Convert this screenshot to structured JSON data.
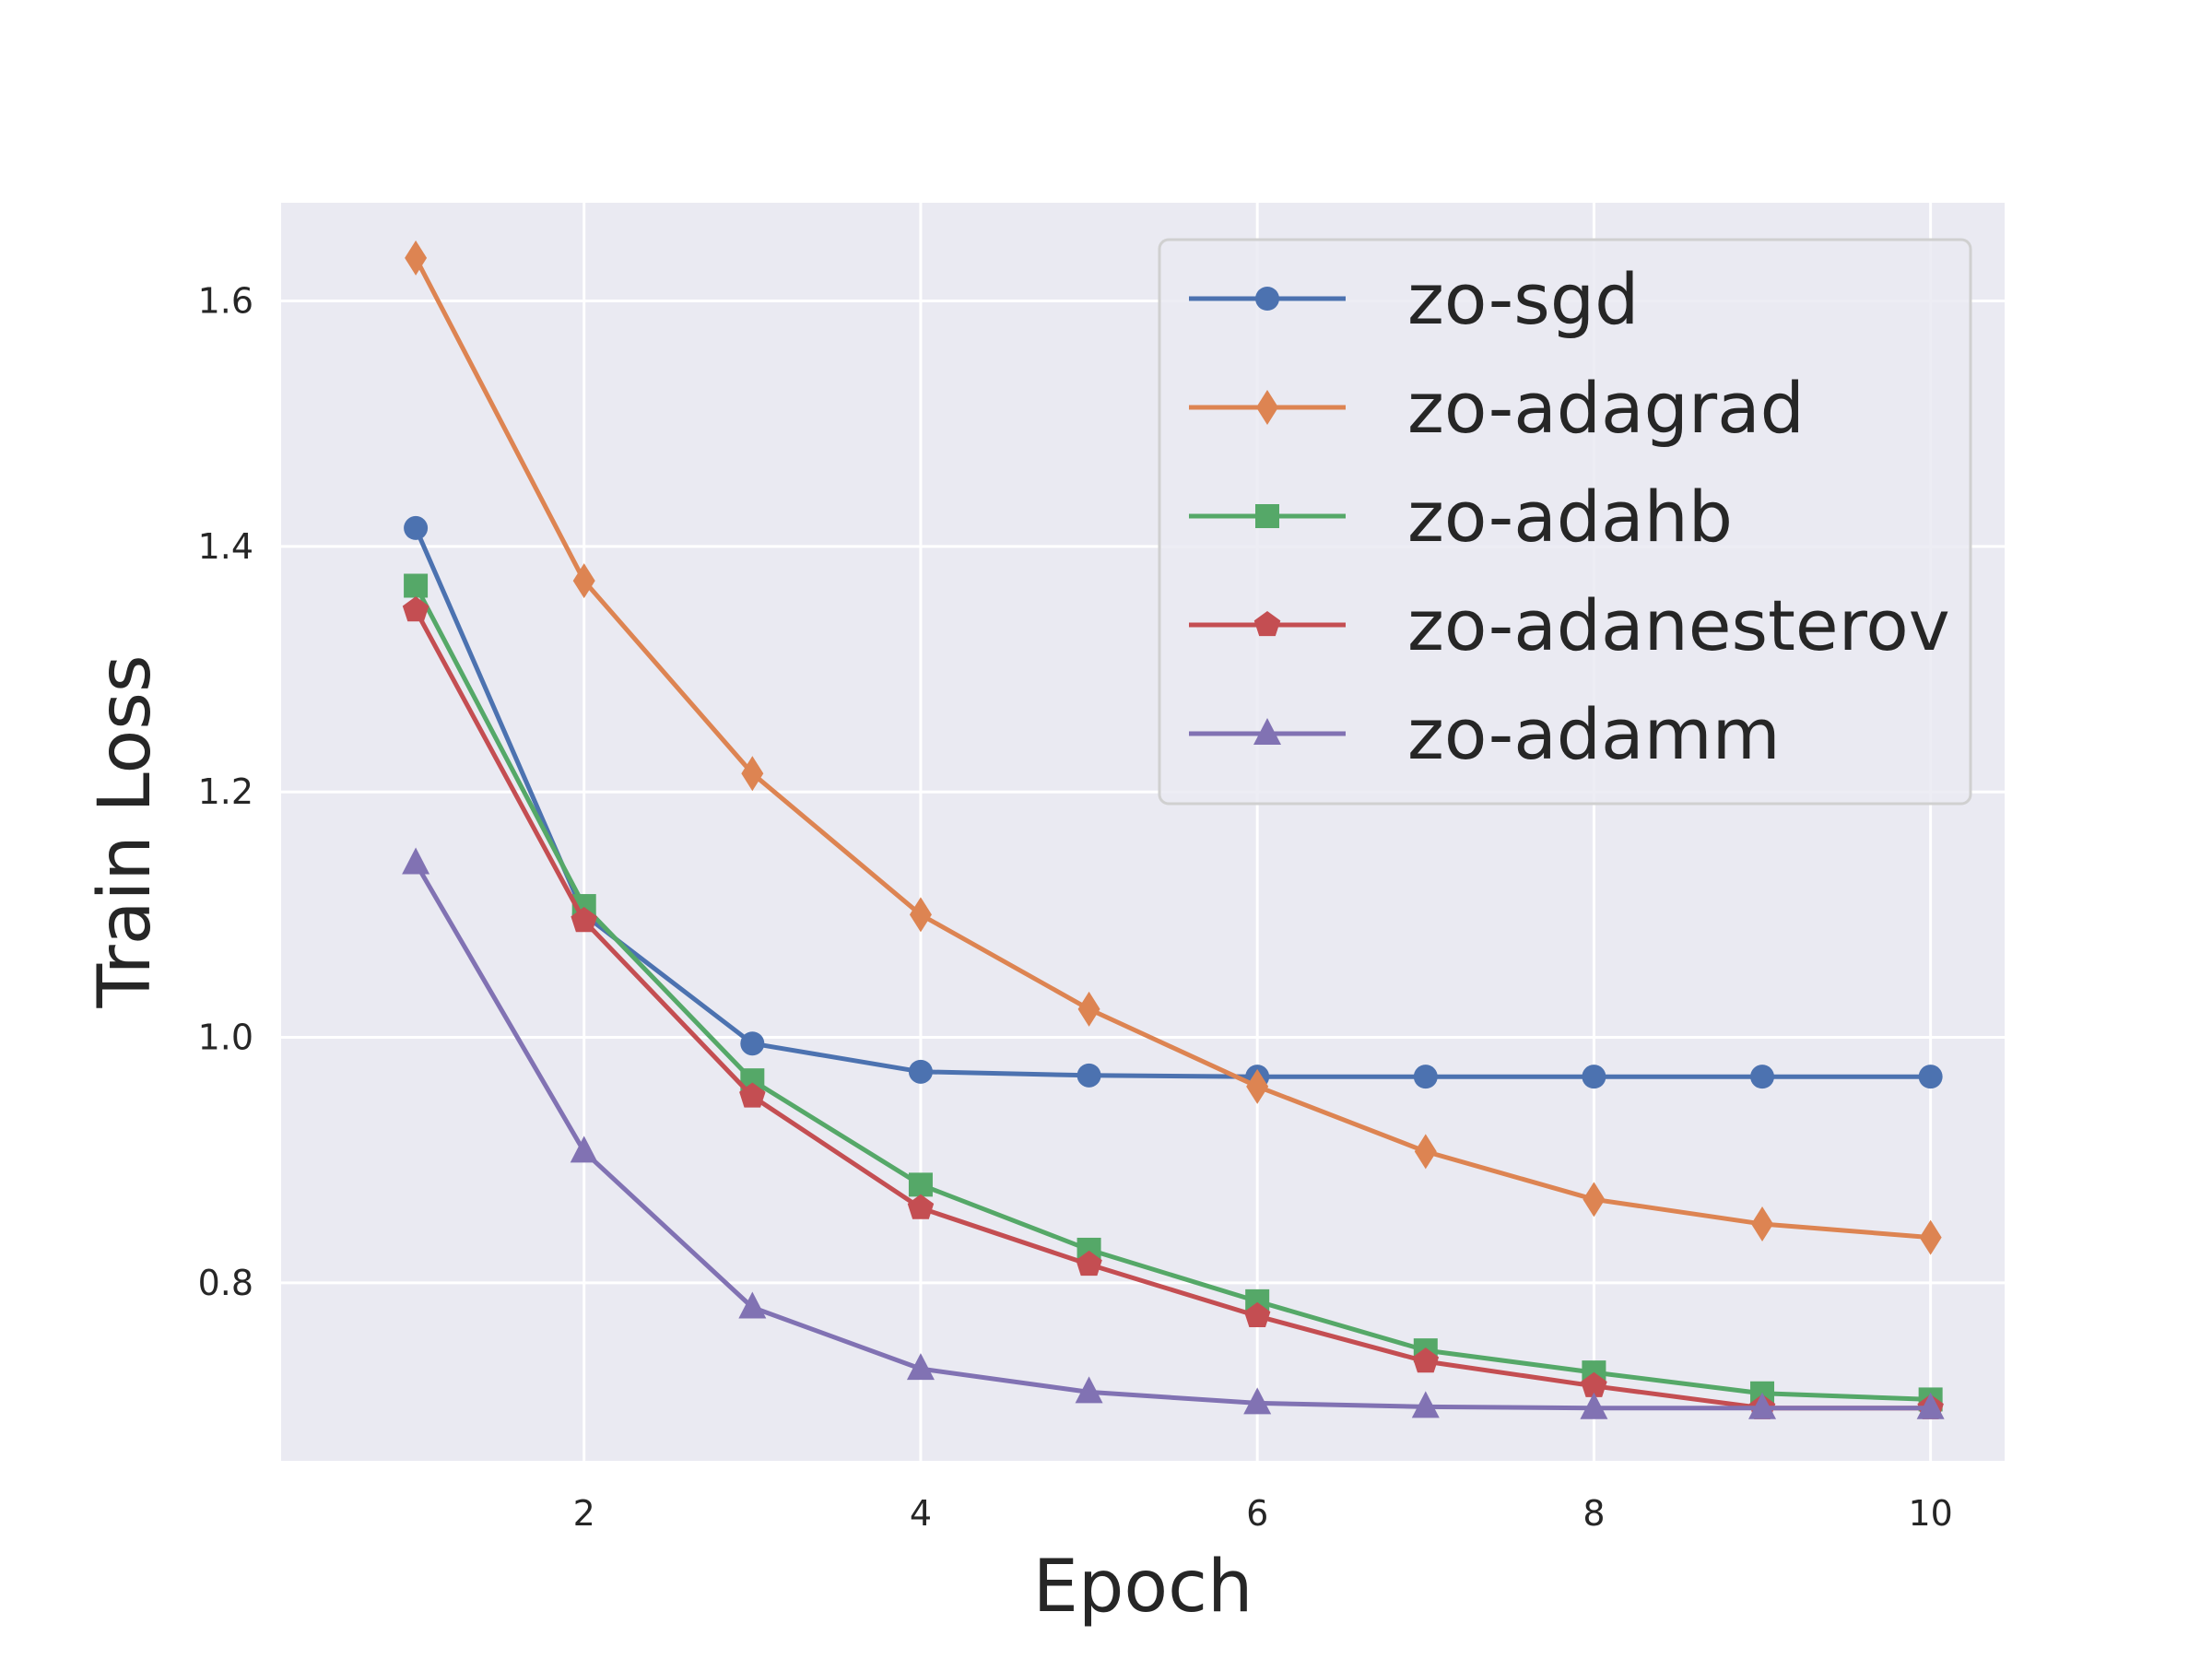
{
  "chart_data": {
    "type": "line",
    "title": "",
    "xlabel": "Epoch",
    "ylabel": "Train Loss",
    "x": [
      1,
      2,
      3,
      4,
      5,
      6,
      7,
      8,
      9,
      10
    ],
    "xlim": [
      0.2,
      10.44
    ],
    "ylim": [
      0.655,
      1.68
    ],
    "xticks": [
      2,
      4,
      6,
      8,
      10
    ],
    "yticks": [
      0.8,
      1.0,
      1.2,
      1.4,
      1.6
    ],
    "xtick_labels": [
      "2",
      "4",
      "6",
      "8",
      "10"
    ],
    "ytick_labels": [
      "0.8",
      "1.0",
      "1.2",
      "1.4",
      "1.6"
    ],
    "grid": true,
    "legend_position": "top-right",
    "background": "#eaeaf2",
    "series": [
      {
        "name": "zo-sgd",
        "color": "#4c72b0",
        "marker": "circle",
        "values": [
          1.415,
          1.1,
          0.995,
          0.972,
          0.969,
          0.968,
          0.968,
          0.968,
          0.968,
          0.968
        ]
      },
      {
        "name": "zo-adagrad",
        "color": "#dd8452",
        "marker": "diamond",
        "values": [
          1.635,
          1.372,
          1.215,
          1.1,
          1.023,
          0.96,
          0.907,
          0.868,
          0.848,
          0.837
        ]
      },
      {
        "name": "zo-adahb",
        "color": "#55a868",
        "marker": "square",
        "values": [
          1.368,
          1.107,
          0.965,
          0.88,
          0.827,
          0.785,
          0.745,
          0.727,
          0.71,
          0.705
        ]
      },
      {
        "name": "zo-adanesterov",
        "color": "#c44e52",
        "marker": "pentagon",
        "values": [
          1.348,
          1.095,
          0.952,
          0.861,
          0.815,
          0.773,
          0.736,
          0.716,
          0.698,
          0.698
        ]
      },
      {
        "name": "zo-adamm",
        "color": "#8172b3",
        "marker": "triangle",
        "values": [
          1.142,
          0.907,
          0.78,
          0.73,
          0.711,
          0.702,
          0.699,
          0.698,
          0.698,
          0.698
        ]
      }
    ]
  }
}
